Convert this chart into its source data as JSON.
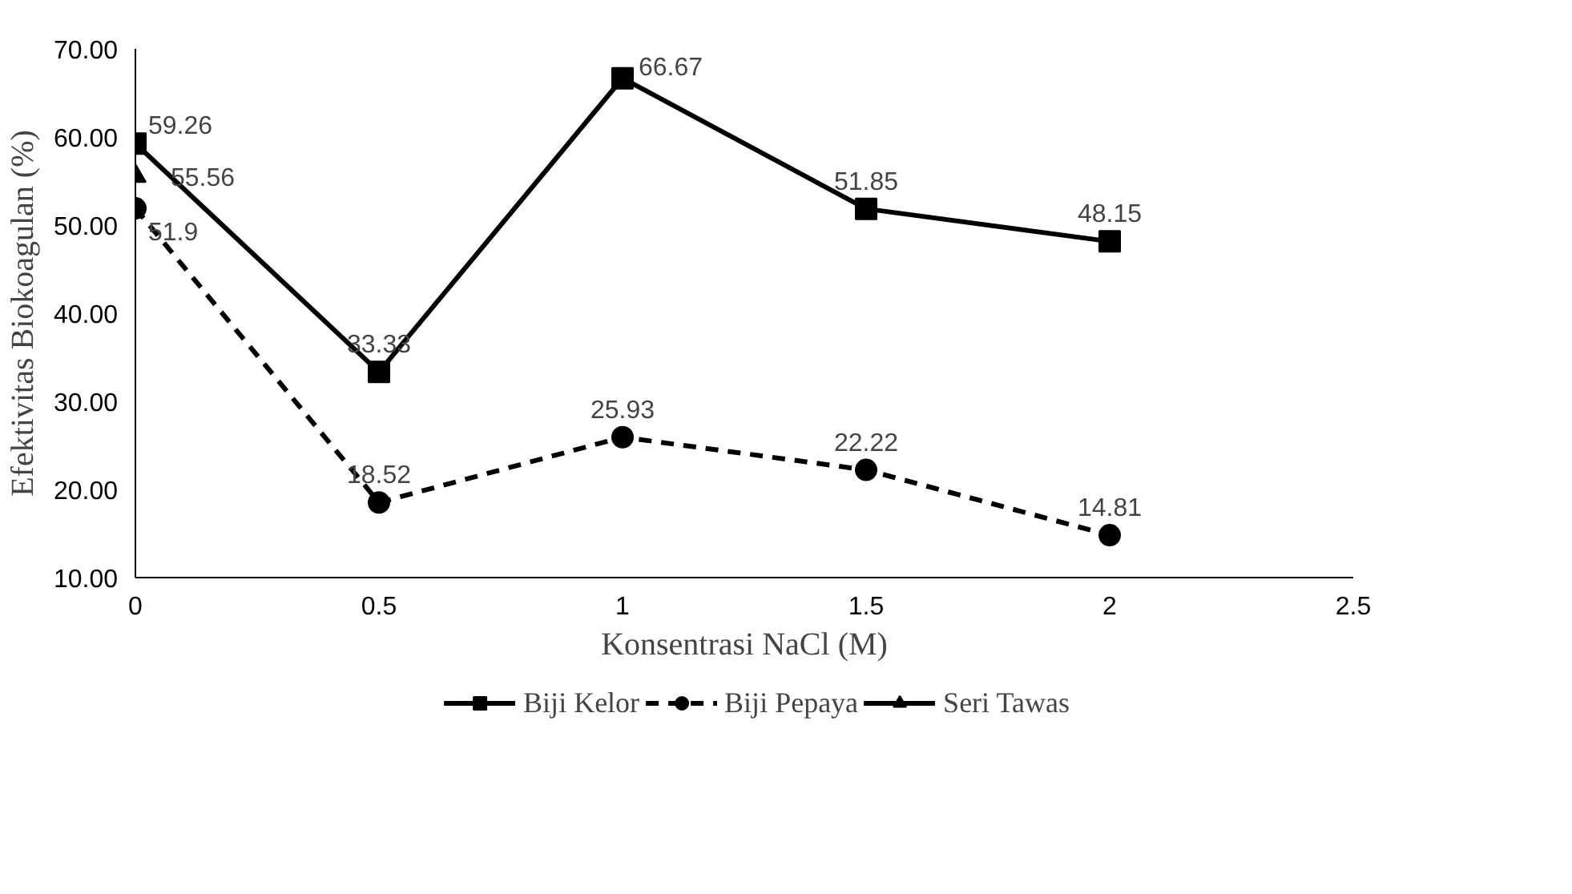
{
  "chart_data": {
    "type": "line",
    "xlabel": "Konsentrasi NaCl (M)",
    "ylabel": "Efektivitas Biokoagulan (%)",
    "x": [
      0,
      0.5,
      1,
      1.5,
      2
    ],
    "series": [
      {
        "name": "Biji Kelor",
        "color": "#000000",
        "values": [
          59.26,
          33.33,
          66.67,
          51.85,
          48.15
        ],
        "marker": "square",
        "line_style": "solid"
      },
      {
        "name": "Biji Pepaya",
        "color": "#000000",
        "values": [
          51.9,
          18.52,
          25.93,
          22.22,
          14.81
        ],
        "marker": "circle",
        "line_style": "dashed"
      },
      {
        "name": "Seri Tawas",
        "color": "#000000",
        "x": [
          0
        ],
        "values": [
          55.56
        ],
        "marker": "triangle",
        "line_style": "solid"
      }
    ],
    "xlim": [
      0,
      2.5
    ],
    "xticks": [
      0,
      0.5,
      1,
      1.5,
      2,
      2.5
    ],
    "ylim": [
      10,
      70
    ],
    "yticks": [
      {
        "value": 10,
        "label": "10.00"
      },
      {
        "value": 20,
        "label": "20.00"
      },
      {
        "value": 30,
        "label": "30.00"
      },
      {
        "value": 40,
        "label": "40.00"
      },
      {
        "value": 50,
        "label": "50.00"
      },
      {
        "value": 60,
        "label": "60.00"
      },
      {
        "value": 70,
        "label": "70.00"
      }
    ],
    "data_labels": true,
    "grid": false,
    "legend": "bottom"
  }
}
